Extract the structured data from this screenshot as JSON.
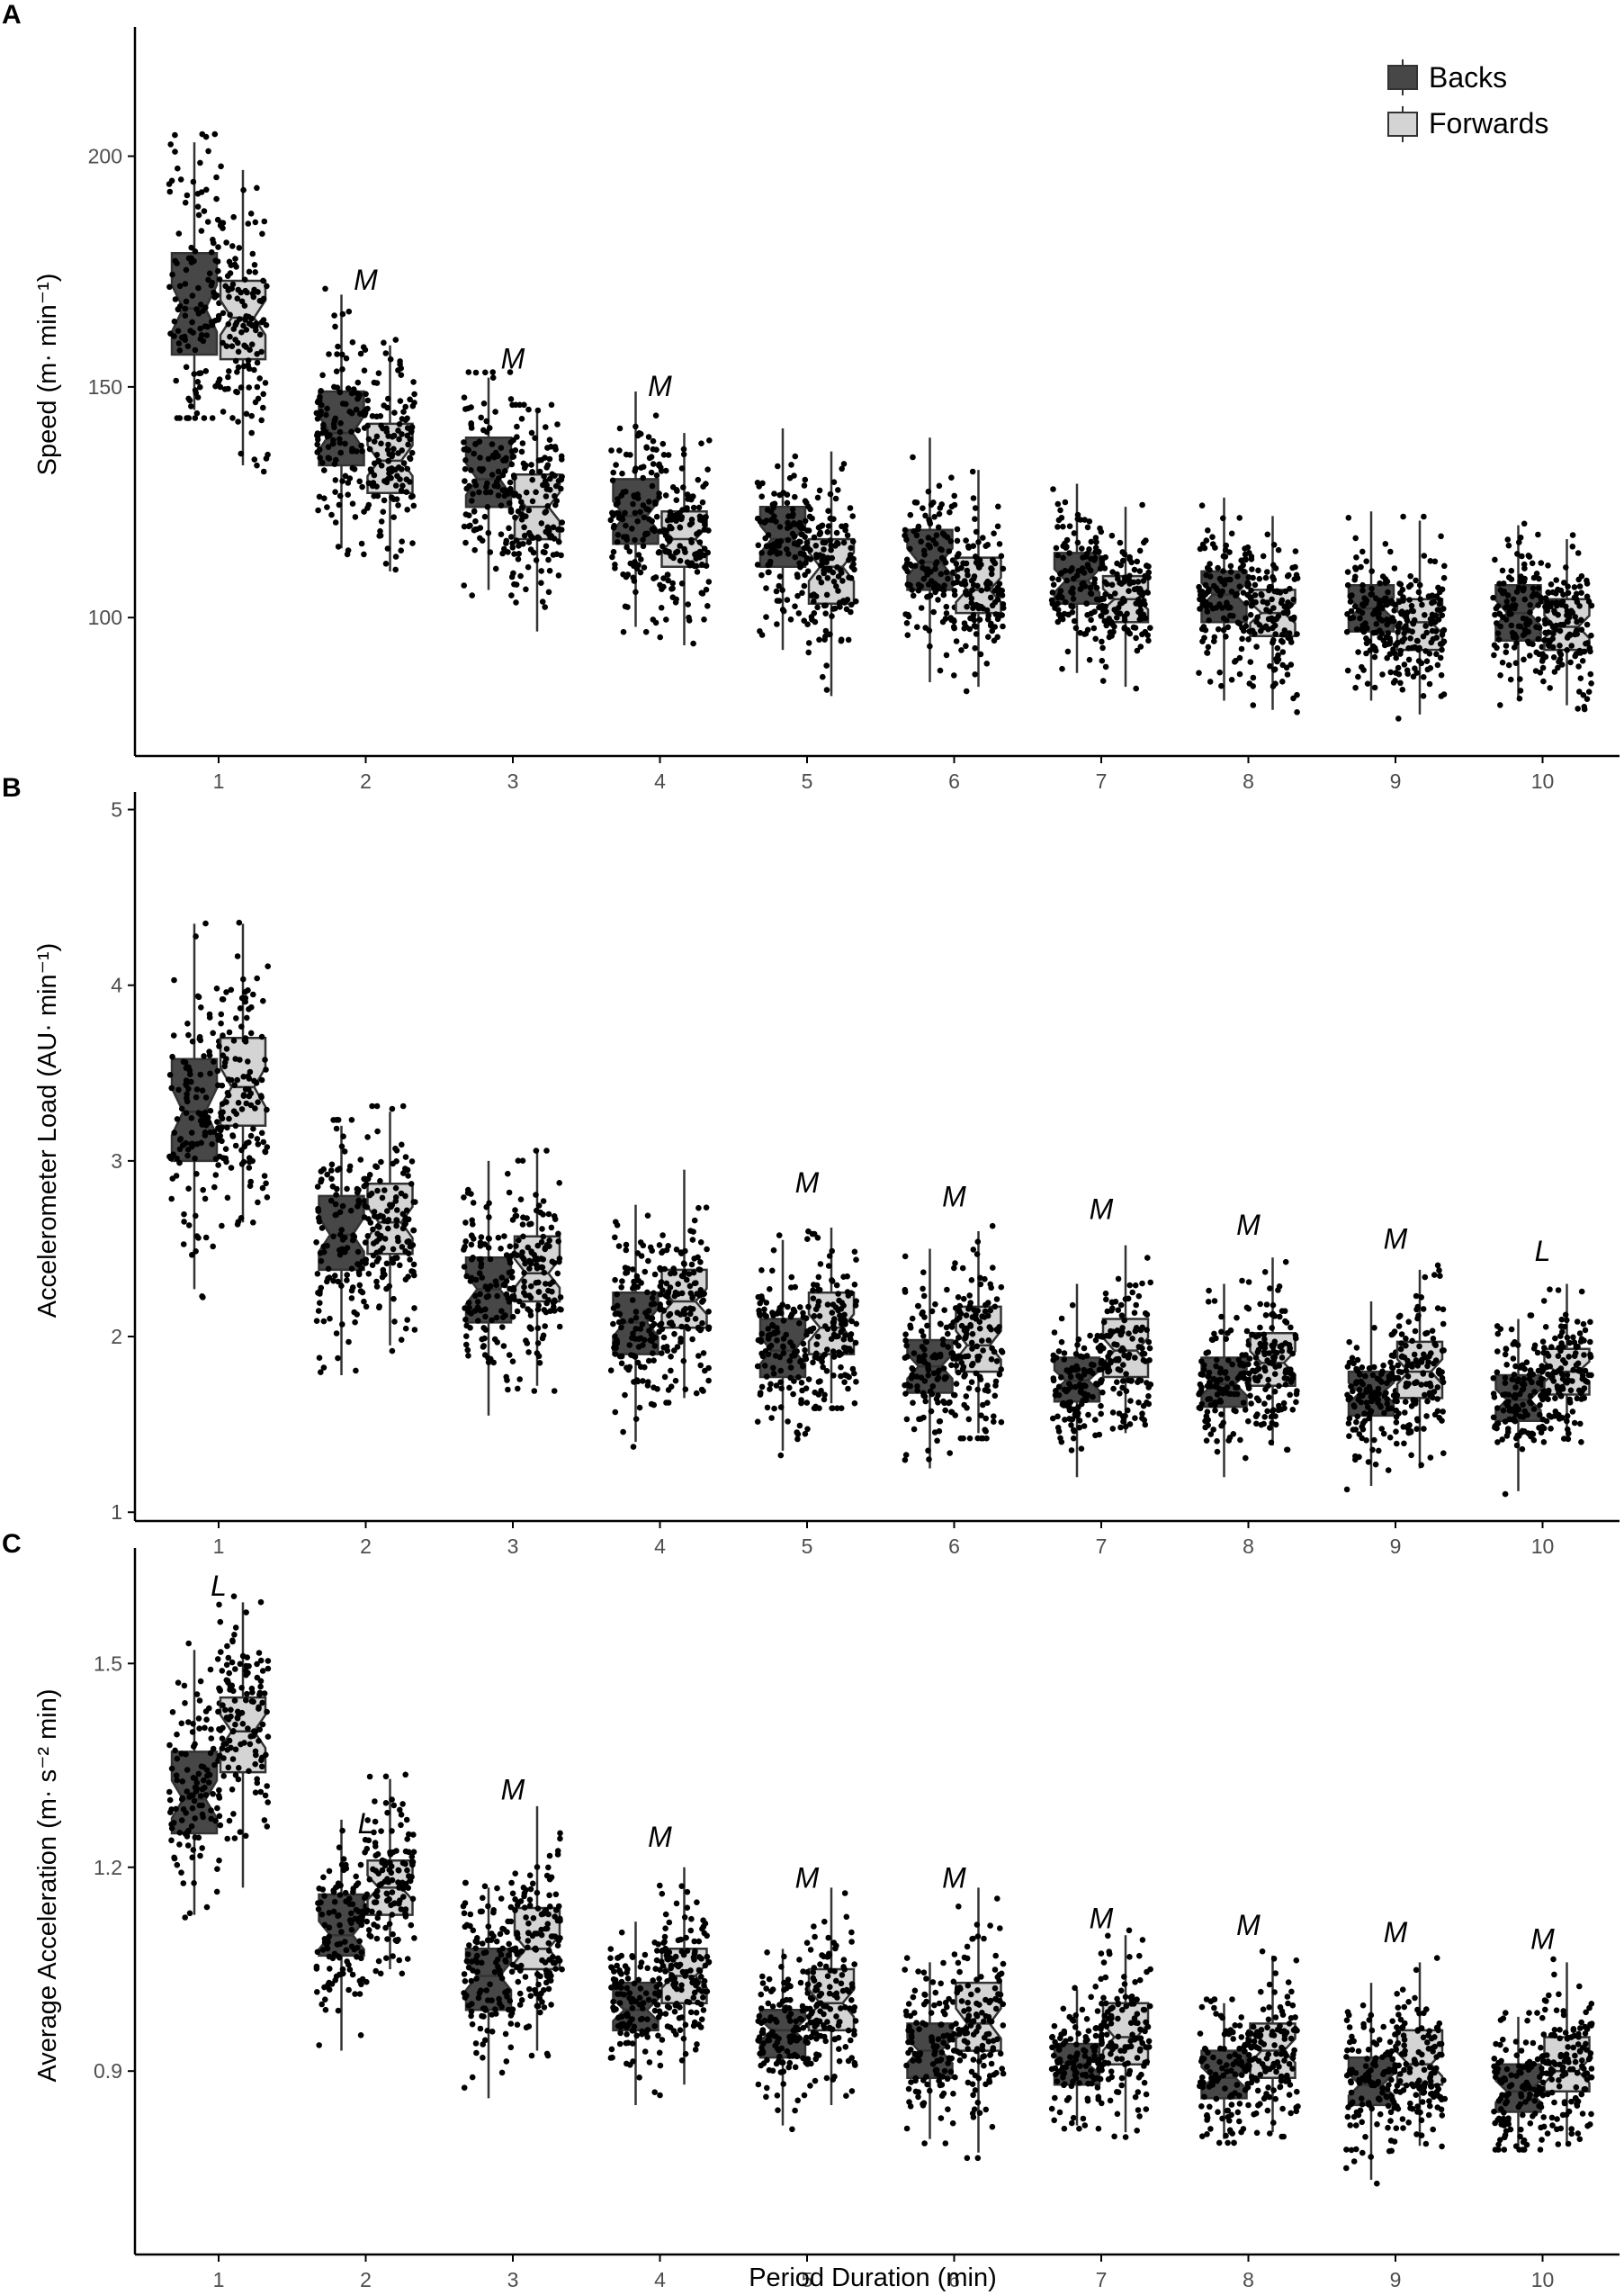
{
  "figure": {
    "xlabel": "Period Duration (min)",
    "legend": {
      "placement": "top-right",
      "entries": [
        "Backs",
        "Forwards"
      ]
    }
  },
  "colors": {
    "backs": "#474747",
    "forwards": "#d4d4d4",
    "outline": "#333333",
    "points": "#000000"
  },
  "chart_data": [
    {
      "type": "box",
      "panel": "A",
      "ylabel": "Speed (m· min⁻¹)",
      "ylim": [
        70,
        228
      ],
      "yticks": [
        100,
        150,
        200
      ],
      "categories": [
        "1",
        "2",
        "3",
        "4",
        "5",
        "6",
        "7",
        "8",
        "9",
        "10"
      ],
      "series": [
        {
          "name": "Backs",
          "median": [
            167,
            140,
            130,
            122,
            117,
            112,
            108,
            105,
            102,
            101
          ],
          "q1": [
            157,
            133,
            124,
            116,
            111,
            106,
            103,
            99,
            97,
            95
          ],
          "q3": [
            179,
            149,
            139,
            130,
            124,
            119,
            114,
            110,
            107,
            107
          ],
          "whisker_low": [
            145,
            115,
            106,
            98,
            93,
            86,
            88,
            82,
            82,
            82
          ],
          "whisker_high": [
            203,
            170,
            152,
            149,
            141,
            139,
            129,
            126,
            123,
            120
          ],
          "n_points": 120
        },
        {
          "name": "Forwards",
          "median": [
            165,
            134,
            124,
            117,
            111,
            106,
            104,
            101,
            99,
            98
          ],
          "q1": [
            156,
            127,
            117,
            111,
            103,
            101,
            99,
            96,
            93,
            93
          ],
          "q3": [
            173,
            142,
            131,
            123,
            117,
            113,
            109,
            106,
            104,
            104
          ],
          "whisker_low": [
            133,
            110,
            97,
            94,
            83,
            85,
            85,
            80,
            79,
            81
          ],
          "whisker_high": [
            197,
            159,
            145,
            140,
            136,
            132,
            124,
            122,
            121,
            117
          ],
          "n_points": 130
        }
      ],
      "annotations": [
        {
          "text": "M",
          "x": "2",
          "y": 171
        },
        {
          "text": "M",
          "x": "3",
          "y": 154
        },
        {
          "text": "M",
          "x": "4",
          "y": 148
        }
      ]
    },
    {
      "type": "box",
      "panel": "B",
      "ylabel": "Accelerometer Load (AU· min⁻¹)",
      "ylim": [
        0.95,
        5.1
      ],
      "yticks": [
        1,
        2,
        3,
        4,
        5
      ],
      "categories": [
        "1",
        "2",
        "3",
        "4",
        "5",
        "6",
        "7",
        "8",
        "9",
        "10"
      ],
      "series": [
        {
          "name": "Backs",
          "median": [
            3.28,
            2.58,
            2.27,
            2.08,
            1.92,
            1.83,
            1.75,
            1.73,
            1.68,
            1.64
          ],
          "q1": [
            3.0,
            2.38,
            2.08,
            1.9,
            1.77,
            1.68,
            1.63,
            1.6,
            1.55,
            1.52
          ],
          "q3": [
            3.58,
            2.8,
            2.45,
            2.25,
            2.1,
            1.98,
            1.88,
            1.88,
            1.8,
            1.78
          ],
          "whisker_low": [
            2.27,
            1.78,
            1.55,
            1.4,
            1.35,
            1.25,
            1.2,
            1.2,
            1.15,
            1.12
          ],
          "whisker_high": [
            4.35,
            3.2,
            3.0,
            2.75,
            2.55,
            2.5,
            2.3,
            2.3,
            2.2,
            2.1
          ],
          "n_points": 120
        },
        {
          "name": "Forwards",
          "median": [
            3.42,
            2.65,
            2.36,
            2.2,
            2.05,
            1.95,
            1.92,
            1.85,
            1.8,
            1.8
          ],
          "q1": [
            3.2,
            2.47,
            2.2,
            2.05,
            1.9,
            1.8,
            1.77,
            1.72,
            1.65,
            1.67
          ],
          "q3": [
            3.7,
            2.87,
            2.57,
            2.38,
            2.25,
            2.17,
            2.1,
            2.02,
            1.97,
            1.93
          ],
          "whisker_low": [
            2.65,
            1.95,
            1.72,
            1.65,
            1.62,
            1.45,
            1.45,
            1.38,
            1.25,
            1.42
          ],
          "whisker_high": [
            4.35,
            3.28,
            3.05,
            2.95,
            2.62,
            2.6,
            2.52,
            2.45,
            2.38,
            2.3
          ],
          "n_points": 130
        }
      ],
      "annotations": [
        {
          "text": "M",
          "x": "5",
          "y": 2.82
        },
        {
          "text": "M",
          "x": "6",
          "y": 2.74
        },
        {
          "text": "M",
          "x": "7",
          "y": 2.67
        },
        {
          "text": "M",
          "x": "8",
          "y": 2.58
        },
        {
          "text": "M",
          "x": "9",
          "y": 2.5
        },
        {
          "text": "L",
          "x": "10",
          "y": 2.43
        }
      ]
    },
    {
      "type": "box",
      "panel": "C",
      "ylabel": "Average Acceleration (m· s⁻² min)",
      "ylim": [
        0.63,
        1.67
      ],
      "yticks": [
        0.9,
        1.2,
        1.5
      ],
      "ytick_labels": [
        "0.9",
        "1.2",
        "1.5"
      ],
      "categories": [
        "1",
        "2",
        "3",
        "4",
        "5",
        "6",
        "7",
        "8",
        "9",
        "10"
      ],
      "series": [
        {
          "name": "Backs",
          "median": [
            1.3,
            1.1,
            1.04,
            0.99,
            0.96,
            0.93,
            0.91,
            0.89,
            0.88,
            0.87
          ],
          "q1": [
            1.25,
            1.07,
            0.99,
            0.96,
            0.92,
            0.89,
            0.88,
            0.86,
            0.85,
            0.84
          ],
          "q3": [
            1.37,
            1.16,
            1.08,
            1.03,
            0.99,
            0.97,
            0.94,
            0.93,
            0.92,
            0.91
          ],
          "whisker_low": [
            1.13,
            0.93,
            0.86,
            0.85,
            0.82,
            0.8,
            0.82,
            0.8,
            0.74,
            0.79
          ],
          "whisker_high": [
            1.52,
            1.27,
            1.17,
            1.12,
            1.08,
            1.06,
            1.02,
            1.0,
            1.03,
            0.98
          ],
          "n_points": 120
        },
        {
          "name": "Forwards",
          "median": [
            1.4,
            1.17,
            1.08,
            1.04,
            1.0,
            0.97,
            0.95,
            0.93,
            0.91,
            0.9
          ],
          "q1": [
            1.34,
            1.13,
            1.05,
            1.0,
            0.96,
            0.93,
            0.91,
            0.89,
            0.88,
            0.87
          ],
          "q3": [
            1.45,
            1.21,
            1.14,
            1.08,
            1.05,
            1.03,
            1.0,
            0.97,
            0.96,
            0.95
          ],
          "whisker_low": [
            1.17,
            1.05,
            0.93,
            0.88,
            0.85,
            0.78,
            0.81,
            0.81,
            0.79,
            0.79
          ],
          "whisker_high": [
            1.59,
            1.33,
            1.29,
            1.2,
            1.17,
            1.17,
            1.1,
            1.07,
            1.06,
            1.06
          ],
          "n_points": 130
        }
      ],
      "annotations": [
        {
          "text": "L",
          "x": "1",
          "y": 1.6
        },
        {
          "text": "L",
          "x": "2",
          "y": 1.25
        },
        {
          "text": "M",
          "x": "3",
          "y": 1.3
        },
        {
          "text": "M",
          "x": "4",
          "y": 1.23
        },
        {
          "text": "M",
          "x": "5",
          "y": 1.17
        },
        {
          "text": "M",
          "x": "6",
          "y": 1.17
        },
        {
          "text": "M",
          "x": "7",
          "y": 1.11
        },
        {
          "text": "M",
          "x": "8",
          "y": 1.1
        },
        {
          "text": "M",
          "x": "9",
          "y": 1.09
        },
        {
          "text": "M",
          "x": "10",
          "y": 1.08
        }
      ]
    }
  ]
}
